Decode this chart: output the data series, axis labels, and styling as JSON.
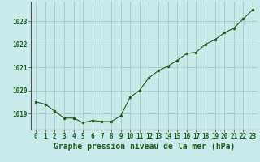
{
  "x": [
    0,
    1,
    2,
    3,
    4,
    5,
    6,
    7,
    8,
    9,
    10,
    11,
    12,
    13,
    14,
    15,
    16,
    17,
    18,
    19,
    20,
    21,
    22,
    23
  ],
  "y": [
    1019.5,
    1019.4,
    1019.1,
    1018.8,
    1018.8,
    1018.6,
    1018.7,
    1018.65,
    1018.65,
    1018.9,
    1019.7,
    1020.0,
    1020.55,
    1020.85,
    1021.05,
    1021.3,
    1021.6,
    1021.65,
    1022.0,
    1022.2,
    1022.5,
    1022.7,
    1023.1,
    1023.5
  ],
  "line_color": "#1a5c1a",
  "marker_color": "#1a5c1a",
  "bg_color": "#c8eaea",
  "grid_color": "#b0c8c8",
  "title": "Graphe pression niveau de la mer (hPa)",
  "xlim": [
    -0.5,
    23.5
  ],
  "ylim": [
    1018.3,
    1023.85
  ],
  "yticks": [
    1019,
    1020,
    1021,
    1022,
    1023
  ],
  "xtick_labels": [
    "0",
    "1",
    "2",
    "3",
    "4",
    "5",
    "6",
    "7",
    "8",
    "9",
    "10",
    "11",
    "12",
    "13",
    "14",
    "15",
    "16",
    "17",
    "18",
    "19",
    "20",
    "21",
    "22",
    "23"
  ],
  "title_fontsize": 7.0,
  "tick_fontsize": 5.5
}
